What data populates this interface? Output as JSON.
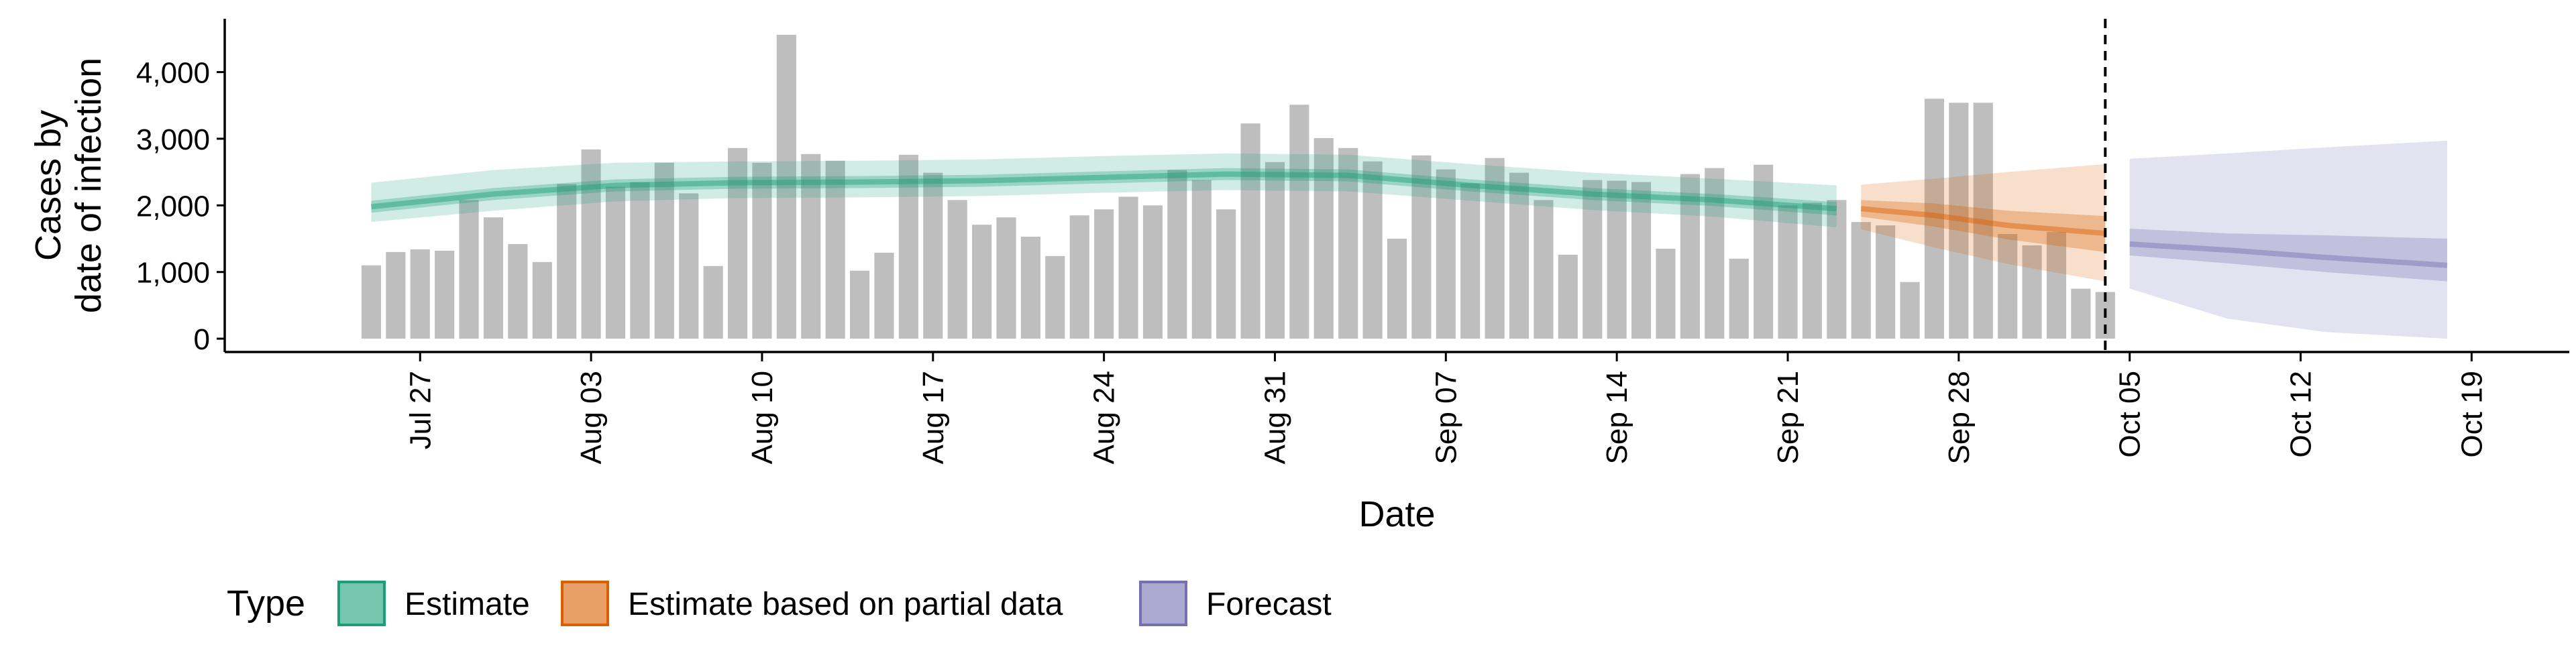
{
  "chart_data": {
    "type": "bar",
    "title": "",
    "xlabel": "Date",
    "ylabel_lines": [
      "Cases by",
      "date of infection"
    ],
    "x_range": [
      "2020-07-19",
      "2020-10-23"
    ],
    "ylim": [
      -200,
      4800
    ],
    "y_ticks": [
      0,
      1000,
      2000,
      3000,
      4000
    ],
    "y_tick_labels": [
      "0",
      "1,000",
      "2,000",
      "3,000",
      "4,000"
    ],
    "x_ticks": [
      "2020-07-27",
      "2020-08-03",
      "2020-08-10",
      "2020-08-17",
      "2020-08-24",
      "2020-08-31",
      "2020-09-07",
      "2020-09-14",
      "2020-09-21",
      "2020-09-28",
      "2020-10-05",
      "2020-10-12",
      "2020-10-19"
    ],
    "x_tick_labels": [
      "Jul 27",
      "Aug 03",
      "Aug 10",
      "Aug 17",
      "Aug 24",
      "Aug 31",
      "Sep 07",
      "Sep 14",
      "Sep 21",
      "Sep 28",
      "Oct 05",
      "Oct 12",
      "Oct 19"
    ],
    "grid": false,
    "legend": {
      "title": "Type",
      "placement": "bottom",
      "items": [
        "Estimate",
        "Estimate based on partial data",
        "Forecast"
      ]
    },
    "vline_date": "2020-10-04",
    "bars": {
      "dates": [
        "2020-07-25",
        "2020-07-26",
        "2020-07-27",
        "2020-07-28",
        "2020-07-29",
        "2020-07-30",
        "2020-07-31",
        "2020-08-01",
        "2020-08-02",
        "2020-08-03",
        "2020-08-04",
        "2020-08-05",
        "2020-08-06",
        "2020-08-07",
        "2020-08-08",
        "2020-08-09",
        "2020-08-10",
        "2020-08-11",
        "2020-08-12",
        "2020-08-13",
        "2020-08-14",
        "2020-08-15",
        "2020-08-16",
        "2020-08-17",
        "2020-08-18",
        "2020-08-19",
        "2020-08-20",
        "2020-08-21",
        "2020-08-22",
        "2020-08-23",
        "2020-08-24",
        "2020-08-25",
        "2020-08-26",
        "2020-08-27",
        "2020-08-28",
        "2020-08-29",
        "2020-08-30",
        "2020-08-31",
        "2020-09-01",
        "2020-09-02",
        "2020-09-03",
        "2020-09-04",
        "2020-09-05",
        "2020-09-06",
        "2020-09-07",
        "2020-09-08",
        "2020-09-09",
        "2020-09-10",
        "2020-09-11",
        "2020-09-12",
        "2020-09-13",
        "2020-09-14",
        "2020-09-15",
        "2020-09-16",
        "2020-09-17",
        "2020-09-18",
        "2020-09-19",
        "2020-09-20",
        "2020-09-21",
        "2020-09-22",
        "2020-09-23",
        "2020-09-24",
        "2020-09-25",
        "2020-09-26",
        "2020-09-27",
        "2020-09-28",
        "2020-09-29",
        "2020-09-30",
        "2020-10-01",
        "2020-10-02",
        "2020-10-03",
        "2020-10-04"
      ],
      "values": [
        1100,
        1300,
        1340,
        1320,
        2080,
        1820,
        1420,
        1150,
        2320,
        2840,
        2280,
        2350,
        2640,
        2180,
        1090,
        2860,
        2640,
        4560,
        2770,
        2670,
        1020,
        1290,
        2760,
        2490,
        2080,
        1710,
        1820,
        1530,
        1240,
        1850,
        1940,
        2130,
        2000,
        2530,
        2380,
        1940,
        3230,
        2650,
        3510,
        3010,
        2860,
        2660,
        1500,
        2750,
        2540,
        2330,
        2710,
        2490,
        2080,
        1260,
        2380,
        2370,
        2350,
        1350,
        2470,
        2560,
        1200,
        2610,
        2000,
        2040,
        2080,
        1750,
        1700,
        850,
        3600,
        3540,
        3540,
        1570,
        1400,
        1600,
        750,
        700
      ],
      "color": "#bebebe"
    },
    "series": [
      {
        "name": "Estimate",
        "color": "#1b9e77",
        "dates": [
          "2020-07-25",
          "2020-07-30",
          "2020-08-04",
          "2020-08-09",
          "2020-08-14",
          "2020-08-19",
          "2020-08-24",
          "2020-08-29",
          "2020-09-03",
          "2020-09-08",
          "2020-09-13",
          "2020-09-18",
          "2020-09-23"
        ],
        "median": [
          1980,
          2170,
          2300,
          2340,
          2350,
          2370,
          2420,
          2470,
          2450,
          2300,
          2170,
          2080,
          1950
        ],
        "lower_inner": [
          1890,
          2080,
          2210,
          2250,
          2260,
          2280,
          2330,
          2380,
          2360,
          2210,
          2080,
          1990,
          1850
        ],
        "upper_inner": [
          2070,
          2260,
          2390,
          2430,
          2440,
          2460,
          2510,
          2560,
          2540,
          2390,
          2260,
          2170,
          2050
        ],
        "lower_outer": [
          1750,
          1920,
          2060,
          2110,
          2120,
          2140,
          2190,
          2230,
          2210,
          2070,
          1930,
          1830,
          1670
        ],
        "upper_outer": [
          2340,
          2530,
          2640,
          2660,
          2670,
          2690,
          2740,
          2780,
          2760,
          2620,
          2490,
          2400,
          2300
        ]
      },
      {
        "name": "Estimate based on partial data",
        "color": "#d95f02",
        "dates": [
          "2020-09-24",
          "2020-09-27",
          "2020-09-30",
          "2020-10-04"
        ],
        "median": [
          1950,
          1850,
          1700,
          1580
        ],
        "lower_inner": [
          1830,
          1680,
          1490,
          1300
        ],
        "upper_inner": [
          2080,
          2030,
          1920,
          1840
        ],
        "lower_outer": [
          1640,
          1370,
          1120,
          860
        ],
        "upper_outer": [
          2310,
          2400,
          2500,
          2620
        ]
      },
      {
        "name": "Forecast",
        "color": "#7570b3",
        "dates": [
          "2020-10-05",
          "2020-10-09",
          "2020-10-13",
          "2020-10-18"
        ],
        "median": [
          1420,
          1330,
          1220,
          1100
        ],
        "lower_inner": [
          1250,
          1130,
          1000,
          860
        ],
        "upper_inner": [
          1650,
          1580,
          1550,
          1500
        ],
        "lower_outer": [
          750,
          300,
          100,
          0
        ],
        "upper_outer": [
          2700,
          2780,
          2870,
          2970
        ]
      }
    ]
  }
}
